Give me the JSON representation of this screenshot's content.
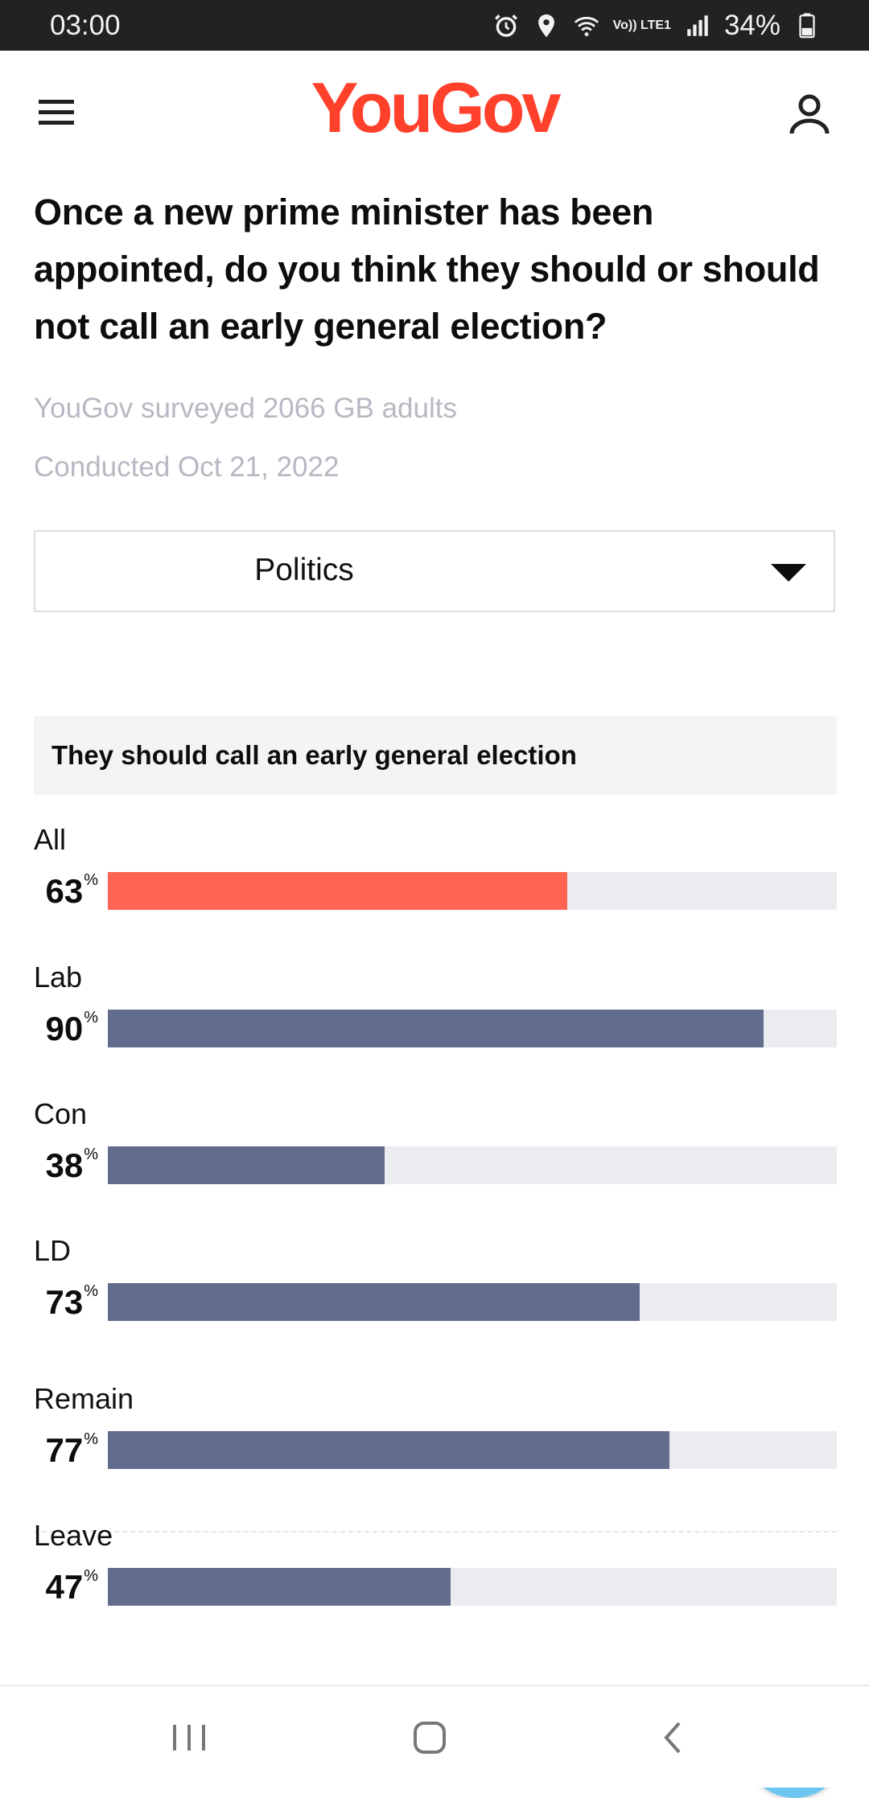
{
  "status_bar": {
    "time": "03:00",
    "volte": "Vo)) LTE1",
    "battery": "34%",
    "icons": [
      "alarm-icon",
      "location-icon",
      "wifi-icon",
      "signal-icon",
      "battery-icon"
    ]
  },
  "header": {
    "logo": "YouGov",
    "menu_icon": "hamburger-menu-icon",
    "user_icon": "user-account-icon"
  },
  "survey": {
    "question": "Once a new prime minister has been appointed, do you think they should or should not call an early general election?",
    "surveyed": "YouGov surveyed 2066 GB adults",
    "conducted": "Conducted Oct 21, 2022"
  },
  "filter": {
    "selected": "Politics"
  },
  "answer": {
    "label": "They should call an early general election"
  },
  "colors": {
    "brand": "#ff412c",
    "all_bar": "#ff6452",
    "group_bar": "#626d8e",
    "track": "#ebecef",
    "share": "#6cc8f2"
  },
  "chart_data": {
    "type": "bar",
    "title": "They should call an early general election",
    "categories": [
      "All",
      "Lab",
      "Con",
      "LD",
      "Remain",
      "Leave"
    ],
    "values": [
      63,
      90,
      38,
      73,
      77,
      47
    ],
    "unit": "%",
    "ylim": [
      0,
      100
    ],
    "percent_labels": [
      "63",
      "90",
      "38",
      "73",
      "77",
      "47"
    ]
  },
  "share": {
    "icon": "share-icon"
  },
  "navbar": {
    "icons": [
      "recent-apps-icon",
      "home-icon",
      "back-icon"
    ]
  }
}
